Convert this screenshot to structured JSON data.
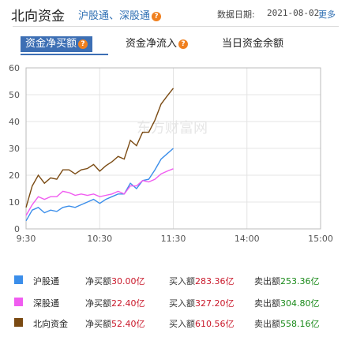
{
  "header": {
    "title": "北向资金",
    "subtitle": "沪股通、深股通",
    "date_label": "数据日期:",
    "date_value": "2021-08-02",
    "more": "更多"
  },
  "tabs": [
    {
      "label": "资金净买额",
      "active": true,
      "help": true
    },
    {
      "label": "资金净流入",
      "active": false,
      "help": true
    },
    {
      "label": "当日资金余额",
      "active": false,
      "help": false
    }
  ],
  "help_glyph": "?",
  "watermark": "东方财富网",
  "colors": {
    "sh": "#3b8eea",
    "sz": "#f05cf0",
    "north": "#7a4a12",
    "tab_active": "#3d6fb4"
  },
  "chart_data": {
    "type": "line",
    "x_ticks": [
      "9:30",
      "10:30",
      "11:30",
      "14:00",
      "15:00"
    ],
    "ylim": [
      0,
      60
    ],
    "y_ticks": [
      0,
      10,
      20,
      30,
      40,
      50,
      60
    ],
    "grid": true,
    "x": [
      "9:30",
      "9:35",
      "9:40",
      "9:45",
      "9:50",
      "9:55",
      "10:00",
      "10:05",
      "10:10",
      "10:15",
      "10:20",
      "10:25",
      "10:30",
      "10:35",
      "10:40",
      "10:45",
      "10:50",
      "10:55",
      "11:00",
      "11:05",
      "11:10",
      "11:15",
      "11:20",
      "11:25",
      "11:30"
    ],
    "series": [
      {
        "name": "沪股通",
        "values": [
          3,
          7,
          8,
          6,
          7,
          6.5,
          8,
          8.5,
          8,
          9,
          10,
          11,
          9.5,
          11,
          12,
          13,
          13,
          17,
          15,
          18,
          18.5,
          22,
          26,
          28,
          30.0
        ]
      },
      {
        "name": "深股通",
        "values": [
          5,
          9,
          12,
          11,
          12,
          12,
          14,
          13.5,
          12.5,
          13,
          12.5,
          13,
          12,
          12.5,
          13,
          14,
          13,
          16,
          16,
          18,
          17.5,
          18.5,
          20.5,
          21.5,
          22.4
        ]
      },
      {
        "name": "北向资金",
        "values": [
          8,
          16,
          20,
          17,
          19,
          18.5,
          22,
          22,
          20.5,
          22,
          22.5,
          24,
          21.5,
          23.5,
          25,
          27,
          26,
          33,
          31,
          36,
          36,
          40.5,
          46.5,
          49.5,
          52.4
        ]
      }
    ]
  },
  "legend": [
    {
      "name": "沪股通",
      "net_label": "净买额",
      "net": "30.00亿",
      "buy_label": "买入额",
      "buy": "283.36亿",
      "sell_label": "卖出额",
      "sell": "253.36亿"
    },
    {
      "name": "深股通",
      "net_label": "净买额",
      "net": "22.40亿",
      "buy_label": "买入额",
      "buy": "327.20亿",
      "sell_label": "卖出额",
      "sell": "304.80亿"
    },
    {
      "name": "北向资金",
      "net_label": "净买额",
      "net": "52.40亿",
      "buy_label": "买入额",
      "buy": "610.56亿",
      "sell_label": "卖出额",
      "sell": "558.16亿"
    }
  ]
}
